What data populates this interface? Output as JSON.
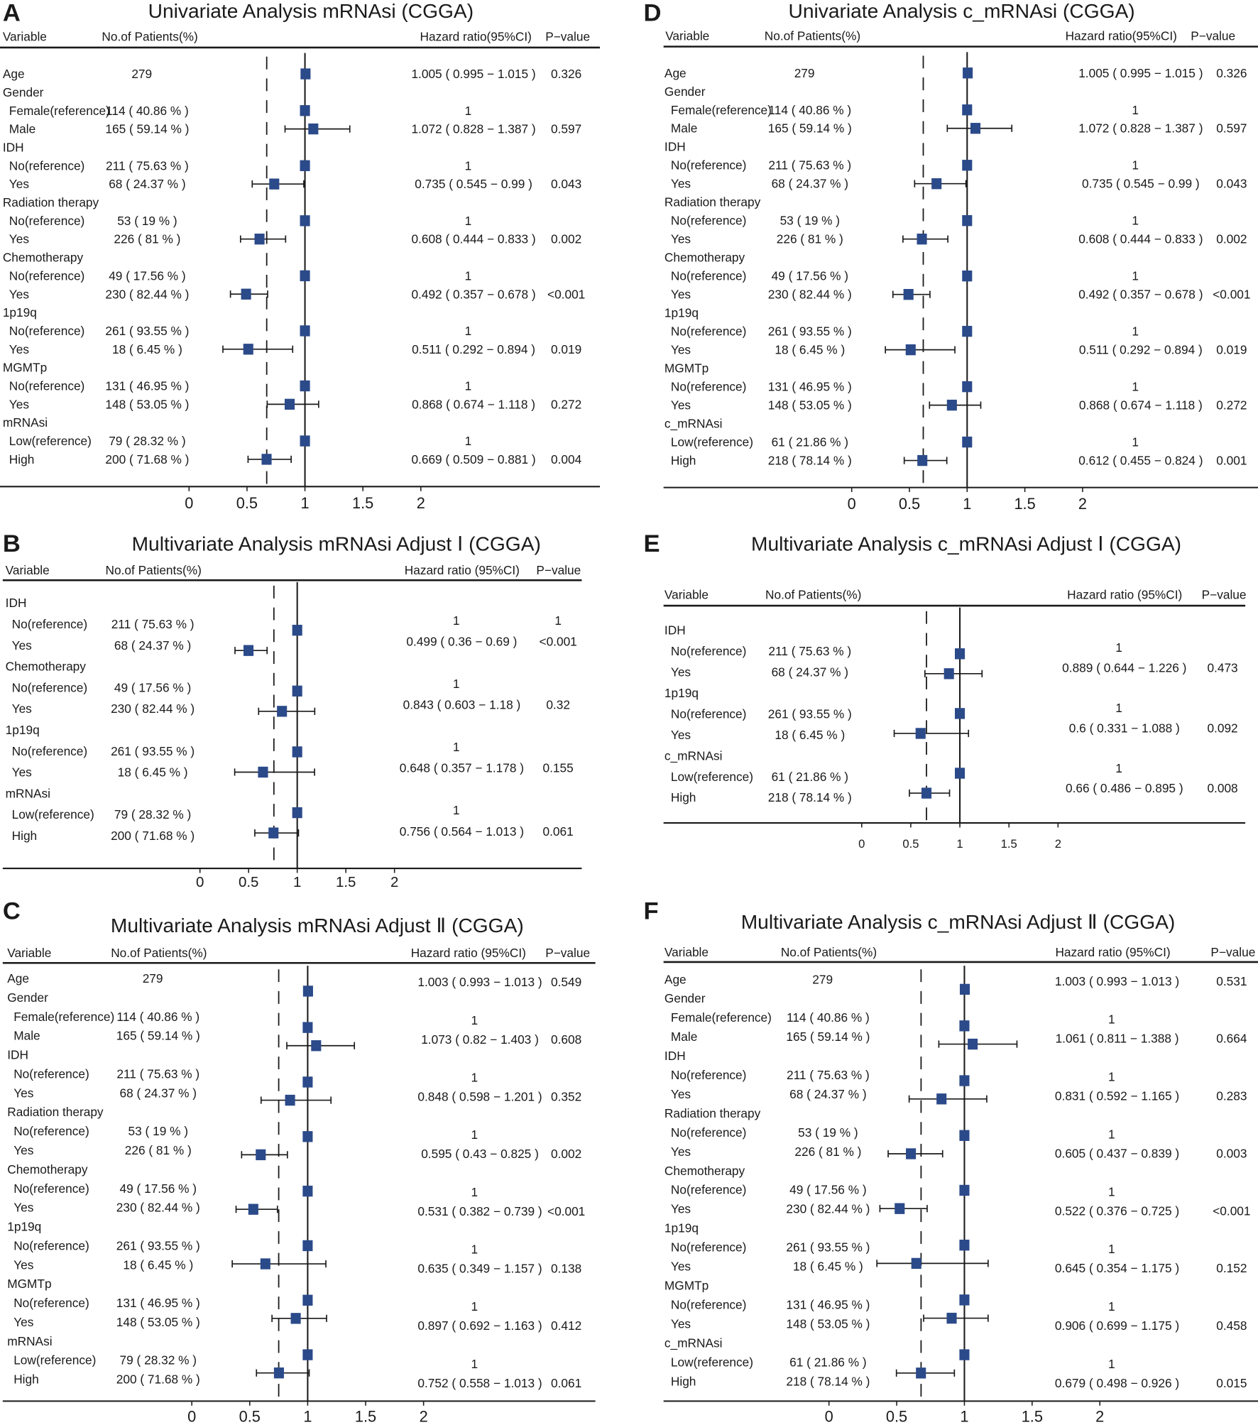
{
  "colors": {
    "marker": "#2b4a8a",
    "line": "#1a1a1a"
  },
  "chart_data": [
    {
      "type": "forest",
      "panel_letter": "A",
      "title": "Univariate Analysis mRNAsi (CGGA)",
      "headers": [
        "Variable",
        "No.of Patients(%)",
        "Hazard ratio(95%CI)",
        "P−value"
      ],
      "xticks": [
        "0",
        "0.5",
        "1",
        "1.5",
        "2"
      ],
      "null_line_hr": 1,
      "dashed_line_hr": 0.67,
      "rows": [
        {
          "label": "Age",
          "n": "279",
          "hr": "1.005",
          "lo": "0.995",
          "hi": "1.015",
          "p": "0.326"
        },
        {
          "label": "Gender"
        },
        {
          "label": "Female(reference)",
          "indent": true,
          "n": "114 ( 40.86 % )",
          "ref": "1"
        },
        {
          "label": "Male",
          "indent": true,
          "n": "165 ( 59.14 % )",
          "hr": "1.072",
          "lo": "0.828",
          "hi": "1.387",
          "p": "0.597"
        },
        {
          "label": "IDH"
        },
        {
          "label": "No(reference)",
          "indent": true,
          "n": "211 ( 75.63 % )",
          "ref": "1"
        },
        {
          "label": "Yes",
          "indent": true,
          "n": "68 ( 24.37 % )",
          "hr": "0.735",
          "lo": "0.545",
          "hi": "0.99",
          "p": "0.043"
        },
        {
          "label": "Radiation therapy"
        },
        {
          "label": "No(reference)",
          "indent": true,
          "n": "53 ( 19 % )",
          "ref": "1"
        },
        {
          "label": "Yes",
          "indent": true,
          "n": "226 ( 81 % )",
          "hr": "0.608",
          "lo": "0.444",
          "hi": "0.833",
          "p": "0.002"
        },
        {
          "label": "Chemotherapy"
        },
        {
          "label": "No(reference)",
          "indent": true,
          "n": "49 ( 17.56 % )",
          "ref": "1"
        },
        {
          "label": "Yes",
          "indent": true,
          "n": "230 ( 82.44 % )",
          "hr": "0.492",
          "lo": "0.357",
          "hi": "0.678",
          "p": "<0.001"
        },
        {
          "label": "1p19q"
        },
        {
          "label": "No(reference)",
          "indent": true,
          "n": "261 ( 93.55 % )",
          "ref": "1"
        },
        {
          "label": "Yes",
          "indent": true,
          "n": "18 ( 6.45 % )",
          "hr": "0.511",
          "lo": "0.292",
          "hi": "0.894",
          "p": "0.019"
        },
        {
          "label": "MGMTp"
        },
        {
          "label": "No(reference)",
          "indent": true,
          "n": "131 ( 46.95 % )",
          "ref": "1"
        },
        {
          "label": "Yes",
          "indent": true,
          "n": "148 ( 53.05 % )",
          "hr": "0.868",
          "lo": "0.674",
          "hi": "1.118",
          "p": "0.272"
        },
        {
          "label": "mRNAsi"
        },
        {
          "label": "Low(reference)",
          "indent": true,
          "n": "79 ( 28.32 % )",
          "ref": "1"
        },
        {
          "label": "High",
          "indent": true,
          "n": "200 ( 71.68 % )",
          "hr": "0.669",
          "lo": "0.509",
          "hi": "0.881",
          "p": "0.004"
        }
      ]
    },
    {
      "type": "forest",
      "panel_letter": "B",
      "title": "Multivariate Analysis mRNAsi Adjust Ⅰ (CGGA)",
      "headers": [
        "Variable",
        "No.of Patients(%)",
        "Hazard ratio (95%CI)",
        "P−value"
      ],
      "xticks": [
        "0",
        "0.5",
        "1",
        "1.5",
        "2"
      ],
      "null_line_hr": 1,
      "dashed_line_hr": 0.76,
      "rows": [
        {
          "label": "IDH"
        },
        {
          "label": "No(reference)",
          "indent": true,
          "n": "211 ( 75.63 % )",
          "ref": "1",
          "p": "1"
        },
        {
          "label": "Yes",
          "indent": true,
          "n": "68 ( 24.37 % )",
          "hr": "0.499",
          "lo": "0.36",
          "hi": "0.69",
          "p": "<0.001"
        },
        {
          "label": "Chemotherapy"
        },
        {
          "label": "No(reference)",
          "indent": true,
          "n": "49 ( 17.56 % )",
          "ref": "1"
        },
        {
          "label": "Yes",
          "indent": true,
          "n": "230 ( 82.44 % )",
          "hr": "0.843",
          "lo": "0.603",
          "hi": "1.18",
          "p": "0.32"
        },
        {
          "label": "1p19q"
        },
        {
          "label": "No(reference)",
          "indent": true,
          "n": "261 ( 93.55 % )",
          "ref": "1"
        },
        {
          "label": "Yes",
          "indent": true,
          "n": "18 ( 6.45 % )",
          "hr": "0.648",
          "lo": "0.357",
          "hi": "1.178",
          "p": "0.155"
        },
        {
          "label": "mRNAsi"
        },
        {
          "label": "Low(reference)",
          "indent": true,
          "n": "79 ( 28.32 % )",
          "ref": "1"
        },
        {
          "label": "High",
          "indent": true,
          "n": "200 ( 71.68 % )",
          "hr": "0.756",
          "lo": "0.564",
          "hi": "1.013",
          "p": "0.061"
        }
      ]
    },
    {
      "type": "forest",
      "panel_letter": "C",
      "title": "Multivariate Analysis mRNAsi Adjust Ⅱ (CGGA)",
      "headers": [
        "Variable",
        "No.of Patients(%)",
        "Hazard ratio (95%CI)",
        "P−value"
      ],
      "xticks": [
        "0",
        "0.5",
        "1",
        "1.5",
        "2"
      ],
      "null_line_hr": 1,
      "dashed_line_hr": 0.75,
      "rows": [
        {
          "label": "Age",
          "n": "279",
          "hr": "1.003",
          "lo": "0.993",
          "hi": "1.013",
          "p": "0.549"
        },
        {
          "label": "Gender"
        },
        {
          "label": "Female(reference)",
          "indent": true,
          "n": "114 ( 40.86 % )",
          "ref": "1"
        },
        {
          "label": "Male",
          "indent": true,
          "n": "165 ( 59.14 % )",
          "hr": "1.073",
          "lo": "0.82",
          "hi": "1.403",
          "p": "0.608"
        },
        {
          "label": "IDH"
        },
        {
          "label": "No(reference)",
          "indent": true,
          "n": "211 ( 75.63 % )",
          "ref": "1"
        },
        {
          "label": "Yes",
          "indent": true,
          "n": "68 ( 24.37 % )",
          "hr": "0.848",
          "lo": "0.598",
          "hi": "1.201",
          "p": "0.352"
        },
        {
          "label": "Radiation therapy"
        },
        {
          "label": "No(reference)",
          "indent": true,
          "n": "53 ( 19 % )",
          "ref": "1"
        },
        {
          "label": "Yes",
          "indent": true,
          "n": "226 ( 81 % )",
          "hr": "0.595",
          "lo": "0.43",
          "hi": "0.825",
          "p": "0.002"
        },
        {
          "label": "Chemotherapy"
        },
        {
          "label": "No(reference)",
          "indent": true,
          "n": "49 ( 17.56 % )",
          "ref": "1"
        },
        {
          "label": "Yes",
          "indent": true,
          "n": "230 ( 82.44 % )",
          "hr": "0.531",
          "lo": "0.382",
          "hi": "0.739",
          "p": "<0.001"
        },
        {
          "label": "1p19q"
        },
        {
          "label": "No(reference)",
          "indent": true,
          "n": "261 ( 93.55 % )",
          "ref": "1"
        },
        {
          "label": "Yes",
          "indent": true,
          "n": "18 ( 6.45 % )",
          "hr": "0.635",
          "lo": "0.349",
          "hi": "1.157",
          "p": "0.138"
        },
        {
          "label": "MGMTp"
        },
        {
          "label": "No(reference)",
          "indent": true,
          "n": "131 ( 46.95 % )",
          "ref": "1"
        },
        {
          "label": "Yes",
          "indent": true,
          "n": "148 ( 53.05 % )",
          "hr": "0.897",
          "lo": "0.692",
          "hi": "1.163",
          "p": "0.412"
        },
        {
          "label": "mRNAsi"
        },
        {
          "label": "Low(reference)",
          "indent": true,
          "n": "79 ( 28.32 % )",
          "ref": "1"
        },
        {
          "label": "High",
          "indent": true,
          "n": "200 ( 71.68 % )",
          "hr": "0.752",
          "lo": "0.558",
          "hi": "1.013",
          "p": "0.061"
        }
      ]
    },
    {
      "type": "forest",
      "panel_letter": "D",
      "title": "Univariate Analysis c_mRNAsi (CGGA)",
      "headers": [
        "Variable",
        "No.of Patients(%)",
        "Hazard ratio(95%CI)",
        "P−value"
      ],
      "xticks": [
        "0",
        "0.5",
        "1",
        "1.5",
        "2"
      ],
      "null_line_hr": 1,
      "dashed_line_hr": 0.62,
      "rows": [
        {
          "label": "Age",
          "n": "279",
          "hr": "1.005",
          "lo": "0.995",
          "hi": "1.015",
          "p": "0.326"
        },
        {
          "label": "Gender"
        },
        {
          "label": "Female(reference)",
          "indent": true,
          "n": "114 ( 40.86 % )",
          "ref": "1"
        },
        {
          "label": "Male",
          "indent": true,
          "n": "165 ( 59.14 % )",
          "hr": "1.072",
          "lo": "0.828",
          "hi": "1.387",
          "p": "0.597"
        },
        {
          "label": "IDH"
        },
        {
          "label": "No(reference)",
          "indent": true,
          "n": "211 ( 75.63 % )",
          "ref": "1"
        },
        {
          "label": "Yes",
          "indent": true,
          "n": "68 ( 24.37 % )",
          "hr": "0.735",
          "lo": "0.545",
          "hi": "0.99",
          "p": "0.043"
        },
        {
          "label": "Radiation therapy"
        },
        {
          "label": "No(reference)",
          "indent": true,
          "n": "53 ( 19 % )",
          "ref": "1"
        },
        {
          "label": "Yes",
          "indent": true,
          "n": "226 ( 81 % )",
          "hr": "0.608",
          "lo": "0.444",
          "hi": "0.833",
          "p": "0.002"
        },
        {
          "label": "Chemotherapy"
        },
        {
          "label": "No(reference)",
          "indent": true,
          "n": "49 ( 17.56 % )",
          "ref": "1"
        },
        {
          "label": "Yes",
          "indent": true,
          "n": "230 ( 82.44 % )",
          "hr": "0.492",
          "lo": "0.357",
          "hi": "0.678",
          "p": "<0.001"
        },
        {
          "label": "1p19q"
        },
        {
          "label": "No(reference)",
          "indent": true,
          "n": "261 ( 93.55 % )",
          "ref": "1"
        },
        {
          "label": "Yes",
          "indent": true,
          "n": "18 ( 6.45 % )",
          "hr": "0.511",
          "lo": "0.292",
          "hi": "0.894",
          "p": "0.019"
        },
        {
          "label": "MGMTp"
        },
        {
          "label": "No(reference)",
          "indent": true,
          "n": "131 ( 46.95 % )",
          "ref": "1"
        },
        {
          "label": "Yes",
          "indent": true,
          "n": "148 ( 53.05 % )",
          "hr": "0.868",
          "lo": "0.674",
          "hi": "1.118",
          "p": "0.272"
        },
        {
          "label": "c_mRNAsi"
        },
        {
          "label": "Low(reference)",
          "indent": true,
          "n": "61 ( 21.86 % )",
          "ref": "1"
        },
        {
          "label": "High",
          "indent": true,
          "n": "218 ( 78.14 % )",
          "hr": "0.612",
          "lo": "0.455",
          "hi": "0.824",
          "p": "0.001"
        }
      ]
    },
    {
      "type": "forest",
      "panel_letter": "E",
      "title": "Multivariate Analysis c_mRNAsi Adjust Ⅰ (CGGA)",
      "headers": [
        "Variable",
        "No.of Patients(%)",
        "Hazard ratio (95%CI)",
        "P−value"
      ],
      "xticks": [
        "0",
        "0.5",
        "1",
        "1.5",
        "2"
      ],
      "null_line_hr": 1,
      "dashed_line_hr": 0.66,
      "rows": [
        {
          "label": "IDH"
        },
        {
          "label": "No(reference)",
          "indent": true,
          "n": "211 ( 75.63 % )",
          "ref": "1"
        },
        {
          "label": "Yes",
          "indent": true,
          "n": "68 ( 24.37 % )",
          "hr": "0.889",
          "lo": "0.644",
          "hi": "1.226",
          "p": "0.473"
        },
        {
          "label": "1p19q"
        },
        {
          "label": "No(reference)",
          "indent": true,
          "n": "261 ( 93.55 % )",
          "ref": "1"
        },
        {
          "label": "Yes",
          "indent": true,
          "n": "18 ( 6.45 % )",
          "hr": "0.6",
          "lo": "0.331",
          "hi": "1.088",
          "p": "0.092"
        },
        {
          "label": "c_mRNAsi"
        },
        {
          "label": "Low(reference)",
          "indent": true,
          "n": "61 ( 21.86 % )",
          "ref": "1"
        },
        {
          "label": "High",
          "indent": true,
          "n": "218 ( 78.14 % )",
          "hr": "0.66",
          "lo": "0.486",
          "hi": "0.895",
          "p": "0.008"
        }
      ]
    },
    {
      "type": "forest",
      "panel_letter": "F",
      "title": "Multivariate Analysis c_mRNAsi Adjust Ⅱ (CGGA)",
      "headers": [
        "Variable",
        "No.of Patients(%)",
        "Hazard ratio (95%CI)",
        "P−value"
      ],
      "xticks": [
        "0",
        "0.5",
        "1",
        "1.5",
        "2"
      ],
      "null_line_hr": 1,
      "dashed_line_hr": 0.68,
      "rows": [
        {
          "label": "Age",
          "n": "279",
          "hr": "1.003",
          "lo": "0.993",
          "hi": "1.013",
          "p": "0.531"
        },
        {
          "label": "Gender"
        },
        {
          "label": "Female(reference)",
          "indent": true,
          "n": "114 ( 40.86 % )",
          "ref": "1"
        },
        {
          "label": "Male",
          "indent": true,
          "n": "165 ( 59.14 % )",
          "hr": "1.061",
          "lo": "0.811",
          "hi": "1.388",
          "p": "0.664"
        },
        {
          "label": "IDH"
        },
        {
          "label": "No(reference)",
          "indent": true,
          "n": "211 ( 75.63 % )",
          "ref": "1"
        },
        {
          "label": "Yes",
          "indent": true,
          "n": "68 ( 24.37 % )",
          "hr": "0.831",
          "lo": "0.592",
          "hi": "1.165",
          "p": "0.283"
        },
        {
          "label": "Radiation therapy"
        },
        {
          "label": "No(reference)",
          "indent": true,
          "n": "53 ( 19 % )",
          "ref": "1"
        },
        {
          "label": "Yes",
          "indent": true,
          "n": "226 ( 81 % )",
          "hr": "0.605",
          "lo": "0.437",
          "hi": "0.839",
          "p": "0.003"
        },
        {
          "label": "Chemotherapy"
        },
        {
          "label": "No(reference)",
          "indent": true,
          "n": "49 ( 17.56 % )",
          "ref": "1"
        },
        {
          "label": "Yes",
          "indent": true,
          "n": "230 ( 82.44 % )",
          "hr": "0.522",
          "lo": "0.376",
          "hi": "0.725",
          "p": "<0.001"
        },
        {
          "label": "1p19q"
        },
        {
          "label": "No(reference)",
          "indent": true,
          "n": "261 ( 93.55 % )",
          "ref": "1"
        },
        {
          "label": "Yes",
          "indent": true,
          "n": "18 ( 6.45 % )",
          "hr": "0.645",
          "lo": "0.354",
          "hi": "1.175",
          "p": "0.152"
        },
        {
          "label": "MGMTp"
        },
        {
          "label": "No(reference)",
          "indent": true,
          "n": "131 ( 46.95 % )",
          "ref": "1"
        },
        {
          "label": "Yes",
          "indent": true,
          "n": "148 ( 53.05 % )",
          "hr": "0.906",
          "lo": "0.699",
          "hi": "1.175",
          "p": "0.458"
        },
        {
          "label": "c_mRNAsi"
        },
        {
          "label": "Low(reference)",
          "indent": true,
          "n": "61 ( 21.86 % )",
          "ref": "1"
        },
        {
          "label": "High",
          "indent": true,
          "n": "218 ( 78.14 % )",
          "hr": "0.679",
          "lo": "0.498",
          "hi": "0.926",
          "p": "0.015"
        }
      ]
    }
  ]
}
